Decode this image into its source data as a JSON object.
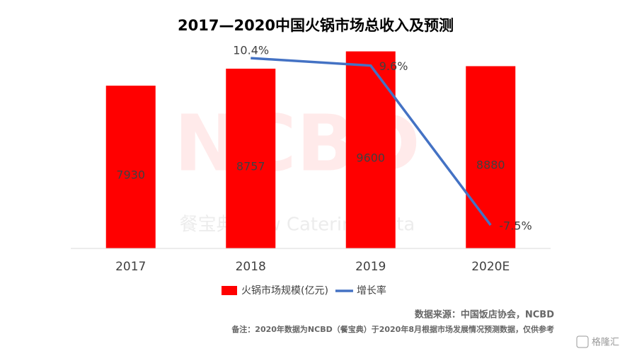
{
  "chart_data": {
    "type": "bar-line",
    "title": "2017—2020中国火锅市场总收入及预测",
    "categories": [
      "2017",
      "2018",
      "2019",
      "2020E"
    ],
    "series": [
      {
        "name": "火锅市场规模(亿元)",
        "type": "bar",
        "color": "#ff0000",
        "values": [
          7930,
          8757,
          9600,
          8880
        ]
      },
      {
        "name": "增长率",
        "type": "line",
        "axis": "y2",
        "color": "#4472c4",
        "values": [
          null,
          10.4,
          9.6,
          -7.5
        ],
        "value_labels": [
          null,
          "10.4%",
          "9.6%",
          "-7.5%"
        ]
      }
    ],
    "ylim": [
      0,
      10000
    ],
    "y2lim": [
      -10,
      12
    ],
    "watermark": [
      "NCBD",
      "餐宝典 New Catering Data"
    ],
    "source": "数据来源：中国饭店协会，NCBD",
    "note": "备注：2020年数据为NCBD（餐宝典）于2020年8月根据市场发展情况预测数据，仅供参考",
    "logo": "格隆汇"
  }
}
